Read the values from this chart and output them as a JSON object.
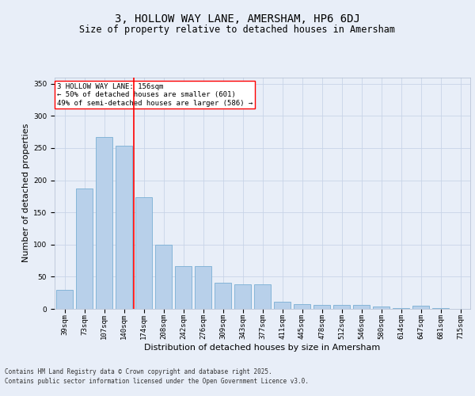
{
  "title": "3, HOLLOW WAY LANE, AMERSHAM, HP6 6DJ",
  "subtitle": "Size of property relative to detached houses in Amersham",
  "xlabel": "Distribution of detached houses by size in Amersham",
  "ylabel": "Number of detached properties",
  "categories": [
    "39sqm",
    "73sqm",
    "107sqm",
    "140sqm",
    "174sqm",
    "208sqm",
    "242sqm",
    "276sqm",
    "309sqm",
    "343sqm",
    "377sqm",
    "411sqm",
    "445sqm",
    "478sqm",
    "512sqm",
    "546sqm",
    "580sqm",
    "614sqm",
    "647sqm",
    "681sqm",
    "715sqm"
  ],
  "values": [
    30,
    187,
    267,
    254,
    174,
    100,
    66,
    66,
    41,
    38,
    38,
    11,
    8,
    6,
    6,
    6,
    4,
    1,
    5,
    1,
    0
  ],
  "bar_color": "#b8d0ea",
  "bar_edge_color": "#7aafd4",
  "grid_color": "#c8d4e8",
  "background_color": "#e8eef8",
  "vline_x": 3.5,
  "vline_color": "red",
  "annotation_title": "3 HOLLOW WAY LANE: 156sqm",
  "annotation_line1": "← 50% of detached houses are smaller (601)",
  "annotation_line2": "49% of semi-detached houses are larger (586) →",
  "annotation_box_facecolor": "white",
  "annotation_box_edgecolor": "red",
  "footer_line1": "Contains HM Land Registry data © Crown copyright and database right 2025.",
  "footer_line2": "Contains public sector information licensed under the Open Government Licence v3.0.",
  "ylim": [
    0,
    360
  ],
  "yticks": [
    0,
    50,
    100,
    150,
    200,
    250,
    300,
    350
  ],
  "title_fontsize": 10,
  "subtitle_fontsize": 8.5,
  "xlabel_fontsize": 8,
  "ylabel_fontsize": 8,
  "tick_fontsize": 6.5,
  "annotation_fontsize": 6.5,
  "footer_fontsize": 5.5
}
